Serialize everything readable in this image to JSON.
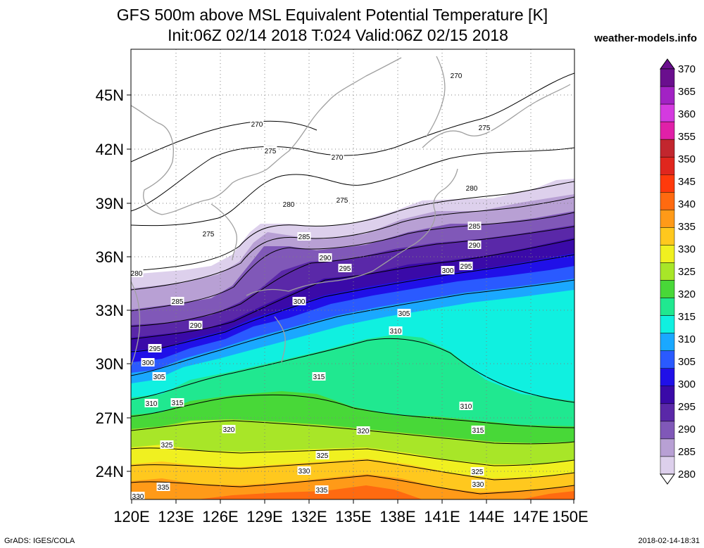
{
  "title_line1": "GFS 500m above MSL Equivalent Potential Temperature [K]",
  "title_line2": "Init:06Z 02/14 2018 T:024 Valid:06Z 02/15 2018",
  "site": "weather-models.info",
  "footer_left": "GrADS: IGES/COLA",
  "footer_right": "2018-02-14-18:31",
  "lat_labels": [
    "45N",
    "42N",
    "39N",
    "36N",
    "33N",
    "30N",
    "27N",
    "24N"
  ],
  "lon_labels": [
    "120E",
    "123E",
    "126E",
    "129E",
    "132E",
    "135E",
    "138E",
    "141E",
    "144E",
    "147E",
    "150E"
  ],
  "colorbar": {
    "levels": [
      "370",
      "365",
      "360",
      "355",
      "350",
      "345",
      "340",
      "335",
      "330",
      "325",
      "320",
      "315",
      "310",
      "305",
      "300",
      "295",
      "290",
      "285",
      "280"
    ],
    "colors": [
      "#6a0f8e",
      "#a222c4",
      "#d43ae0",
      "#e020a8",
      "#c2262e",
      "#e0261e",
      "#ff3a0c",
      "#ff6a10",
      "#ff9a18",
      "#ffc81e",
      "#f0f020",
      "#a8e628",
      "#48d838",
      "#20e890",
      "#10f0e0",
      "#1aa8ff",
      "#2a5aff",
      "#2010e8",
      "#3a0aa8",
      "#5a28a8",
      "#8058b8",
      "#b8a0d4",
      "#ddd0ec"
    ]
  },
  "contour_labels": [
    {
      "text": "270"
    },
    {
      "text": "270"
    },
    {
      "text": "270"
    },
    {
      "text": "275"
    },
    {
      "text": "275"
    },
    {
      "text": "275"
    },
    {
      "text": "275"
    },
    {
      "text": "280"
    },
    {
      "text": "280"
    },
    {
      "text": "280"
    },
    {
      "text": "285"
    },
    {
      "text": "285"
    },
    {
      "text": "285"
    },
    {
      "text": "290"
    },
    {
      "text": "290"
    },
    {
      "text": "290"
    },
    {
      "text": "295"
    },
    {
      "text": "295"
    },
    {
      "text": "295"
    },
    {
      "text": "300"
    },
    {
      "text": "300"
    },
    {
      "text": "300"
    },
    {
      "text": "305"
    },
    {
      "text": "305"
    },
    {
      "text": "310"
    },
    {
      "text": "310"
    },
    {
      "text": "310"
    },
    {
      "text": "315"
    },
    {
      "text": "315"
    },
    {
      "text": "315"
    },
    {
      "text": "320"
    },
    {
      "text": "320"
    },
    {
      "text": "325"
    },
    {
      "text": "325"
    },
    {
      "text": "325"
    },
    {
      "text": "330"
    },
    {
      "text": "330"
    },
    {
      "text": "330"
    },
    {
      "text": "335"
    },
    {
      "text": "335"
    }
  ]
}
